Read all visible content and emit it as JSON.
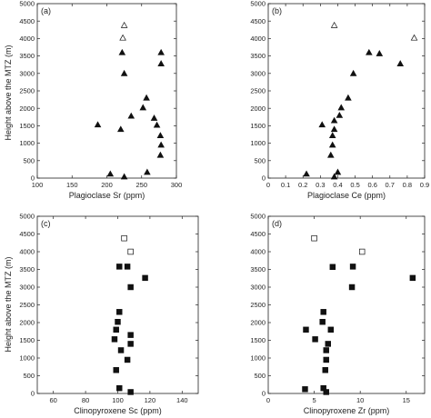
{
  "figure": {
    "shared_ylabel": "Height above the MTZ (m)"
  },
  "chart_data": [
    {
      "type": "scatter",
      "panel": "(a)",
      "xlabel": "Plagioclase Sr (ppm)",
      "ylabel": "Height above the MTZ (m)",
      "xlim": [
        100,
        300
      ],
      "ylim": [
        0,
        5000
      ],
      "xticks": [
        100,
        150,
        200,
        250,
        300
      ],
      "yticks": [
        0,
        500,
        1000,
        1500,
        2000,
        2500,
        3000,
        3500,
        4000,
        4500,
        5000
      ],
      "marker": "triangle",
      "filled": [
        [
          278,
          3600
        ],
        [
          278,
          3280
        ],
        [
          222,
          3600
        ],
        [
          225,
          3000
        ],
        [
          257,
          2300
        ],
        [
          252,
          2020
        ],
        [
          235,
          1780
        ],
        [
          268,
          1720
        ],
        [
          272,
          1520
        ],
        [
          187,
          1530
        ],
        [
          220,
          1400
        ],
        [
          277,
          1220
        ],
        [
          278,
          950
        ],
        [
          277,
          660
        ],
        [
          205,
          120
        ],
        [
          258,
          170
        ],
        [
          225,
          40
        ]
      ],
      "open": [
        [
          225,
          4380
        ],
        [
          223,
          4020
        ]
      ]
    },
    {
      "type": "scatter",
      "panel": "(b)",
      "xlabel": "Plagioclase Ce (ppm)",
      "ylabel": "",
      "xlim": [
        0,
        0.9
      ],
      "ylim": [
        0,
        5000
      ],
      "xticks": [
        0,
        0.1,
        0.2,
        0.3,
        0.4,
        0.5,
        0.6,
        0.7,
        0.8,
        0.9
      ],
      "yticks": [
        0,
        500,
        1000,
        1500,
        2000,
        2500,
        3000,
        3500,
        4000,
        4500,
        5000
      ],
      "marker": "triangle",
      "filled": [
        [
          0.58,
          3600
        ],
        [
          0.64,
          3570
        ],
        [
          0.76,
          3280
        ],
        [
          0.49,
          3000
        ],
        [
          0.46,
          2300
        ],
        [
          0.42,
          2020
        ],
        [
          0.41,
          1800
        ],
        [
          0.38,
          1650
        ],
        [
          0.31,
          1530
        ],
        [
          0.38,
          1400
        ],
        [
          0.37,
          1220
        ],
        [
          0.37,
          950
        ],
        [
          0.36,
          660
        ],
        [
          0.22,
          120
        ],
        [
          0.4,
          170
        ],
        [
          0.38,
          40
        ]
      ],
      "open": [
        [
          0.38,
          4380
        ],
        [
          0.84,
          4020
        ]
      ]
    },
    {
      "type": "scatter",
      "panel": "(c)",
      "xlabel": "Clinopyroxene Sc (ppm)",
      "ylabel": "Height above the MTZ (m)",
      "xlim": [
        50,
        150
      ],
      "ylim": [
        0,
        5000
      ],
      "xticks": [
        60,
        80,
        100,
        120,
        140
      ],
      "yticks": [
        0,
        500,
        1000,
        1500,
        2000,
        2500,
        3000,
        3500,
        4000,
        4500,
        5000
      ],
      "marker": "square",
      "filled": [
        [
          101,
          3580
        ],
        [
          106,
          3580
        ],
        [
          117,
          3260
        ],
        [
          108,
          3000
        ],
        [
          101,
          2300
        ],
        [
          100,
          2020
        ],
        [
          99,
          1800
        ],
        [
          108,
          1650
        ],
        [
          98,
          1530
        ],
        [
          108,
          1400
        ],
        [
          102,
          1220
        ],
        [
          106,
          950
        ],
        [
          99,
          660
        ],
        [
          101,
          150
        ],
        [
          108,
          40
        ]
      ],
      "open": [
        [
          104,
          4380
        ],
        [
          108,
          4000
        ]
      ]
    },
    {
      "type": "scatter",
      "panel": "(d)",
      "xlabel": "Clinopyroxene Zr (ppm)",
      "ylabel": "",
      "xlim": [
        0,
        17
      ],
      "ylim": [
        0,
        5000
      ],
      "xticks": [
        0,
        5,
        10,
        15
      ],
      "yticks": [
        0,
        500,
        1000,
        1500,
        2000,
        2500,
        3000,
        3500,
        4000,
        4500,
        5000
      ],
      "marker": "square",
      "filled": [
        [
          7.0,
          3570
        ],
        [
          9.2,
          3580
        ],
        [
          15.7,
          3260
        ],
        [
          9.1,
          3000
        ],
        [
          6.0,
          2300
        ],
        [
          5.9,
          2020
        ],
        [
          4.1,
          1800
        ],
        [
          6.8,
          1800
        ],
        [
          5.1,
          1530
        ],
        [
          6.5,
          1400
        ],
        [
          6.3,
          1220
        ],
        [
          6.3,
          950
        ],
        [
          6.2,
          660
        ],
        [
          4.0,
          120
        ],
        [
          6.0,
          150
        ],
        [
          6.3,
          40
        ]
      ],
      "open": [
        [
          5.0,
          4380
        ],
        [
          10.2,
          4000
        ]
      ]
    }
  ]
}
